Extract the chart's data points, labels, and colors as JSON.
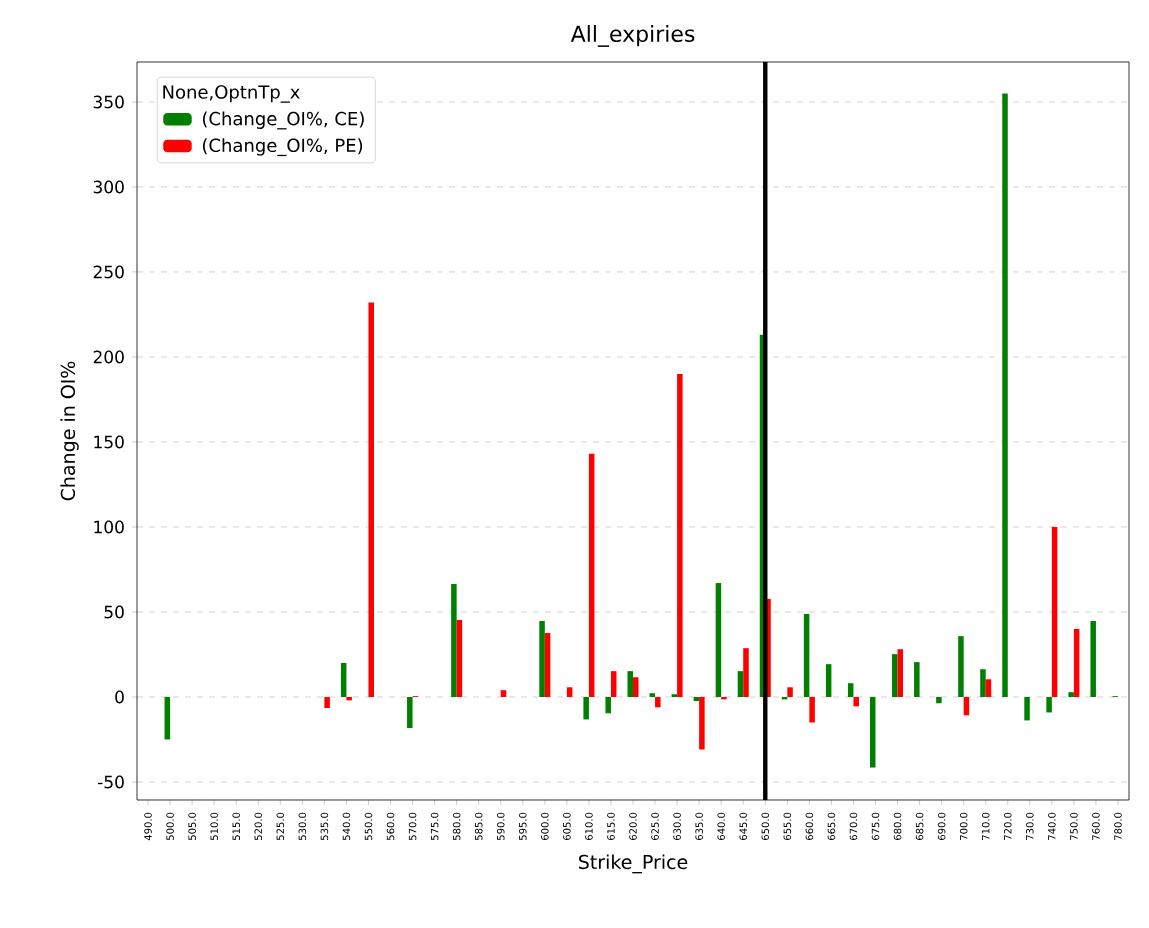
{
  "chart_data": {
    "type": "bar",
    "title": "All_expiries",
    "xlabel": "Strike_Price",
    "ylabel": "Change in OI%",
    "legend_title": "None,OptnTp_x",
    "categories": [
      "490.0",
      "500.0",
      "505.0",
      "510.0",
      "515.0",
      "520.0",
      "525.0",
      "530.0",
      "535.0",
      "540.0",
      "550.0",
      "560.0",
      "570.0",
      "575.0",
      "580.0",
      "585.0",
      "590.0",
      "595.0",
      "600.0",
      "605.0",
      "610.0",
      "615.0",
      "620.0",
      "625.0",
      "630.0",
      "635.0",
      "640.0",
      "645.0",
      "650.0",
      "655.0",
      "660.0",
      "665.0",
      "670.0",
      "675.0",
      "680.0",
      "685.0",
      "690.0",
      "700.0",
      "710.0",
      "720.0",
      "730.0",
      "740.0",
      "750.0",
      "760.0",
      "780.0"
    ],
    "series": [
      {
        "name": " (Change_OI%, CE)",
        "color": "#008000",
        "values": [
          null,
          -25,
          null,
          null,
          null,
          null,
          null,
          null,
          null,
          20,
          null,
          null,
          -18.3,
          null,
          66.5,
          null,
          null,
          null,
          44.7,
          null,
          -13.2,
          -9.6,
          15.2,
          2.2,
          1.6,
          -2.4,
          67,
          15.2,
          213,
          -1.4,
          48.8,
          19.3,
          8.1,
          -41.5,
          25.2,
          20.5,
          -3.7,
          35.8,
          16.3,
          355,
          -13.8,
          -9.1,
          2.8,
          44.7,
          0.5
        ]
      },
      {
        "name": " (Change_OI%, PE)",
        "color": "#ff0000",
        "values": [
          null,
          null,
          null,
          null,
          null,
          null,
          null,
          null,
          -6.5,
          -2,
          232,
          null,
          0.5,
          null,
          45.3,
          null,
          4,
          null,
          37.6,
          5.7,
          143,
          15.2,
          11.6,
          -6.1,
          190,
          -30.9,
          -1.4,
          28.7,
          57.7,
          5.7,
          -15,
          null,
          -5.5,
          null,
          28.1,
          null,
          null,
          -10.8,
          10.4,
          null,
          null,
          100,
          40,
          null,
          null
        ]
      }
    ],
    "ylim": [
      -60.6,
      373.5
    ],
    "yticks": [
      -50,
      0,
      50,
      100,
      150,
      200,
      250,
      300,
      350
    ],
    "grid": "y",
    "legend": "top left",
    "ref_lines": [
      {
        "axis": "x",
        "value": "650.0",
        "color": "#000000"
      }
    ]
  }
}
